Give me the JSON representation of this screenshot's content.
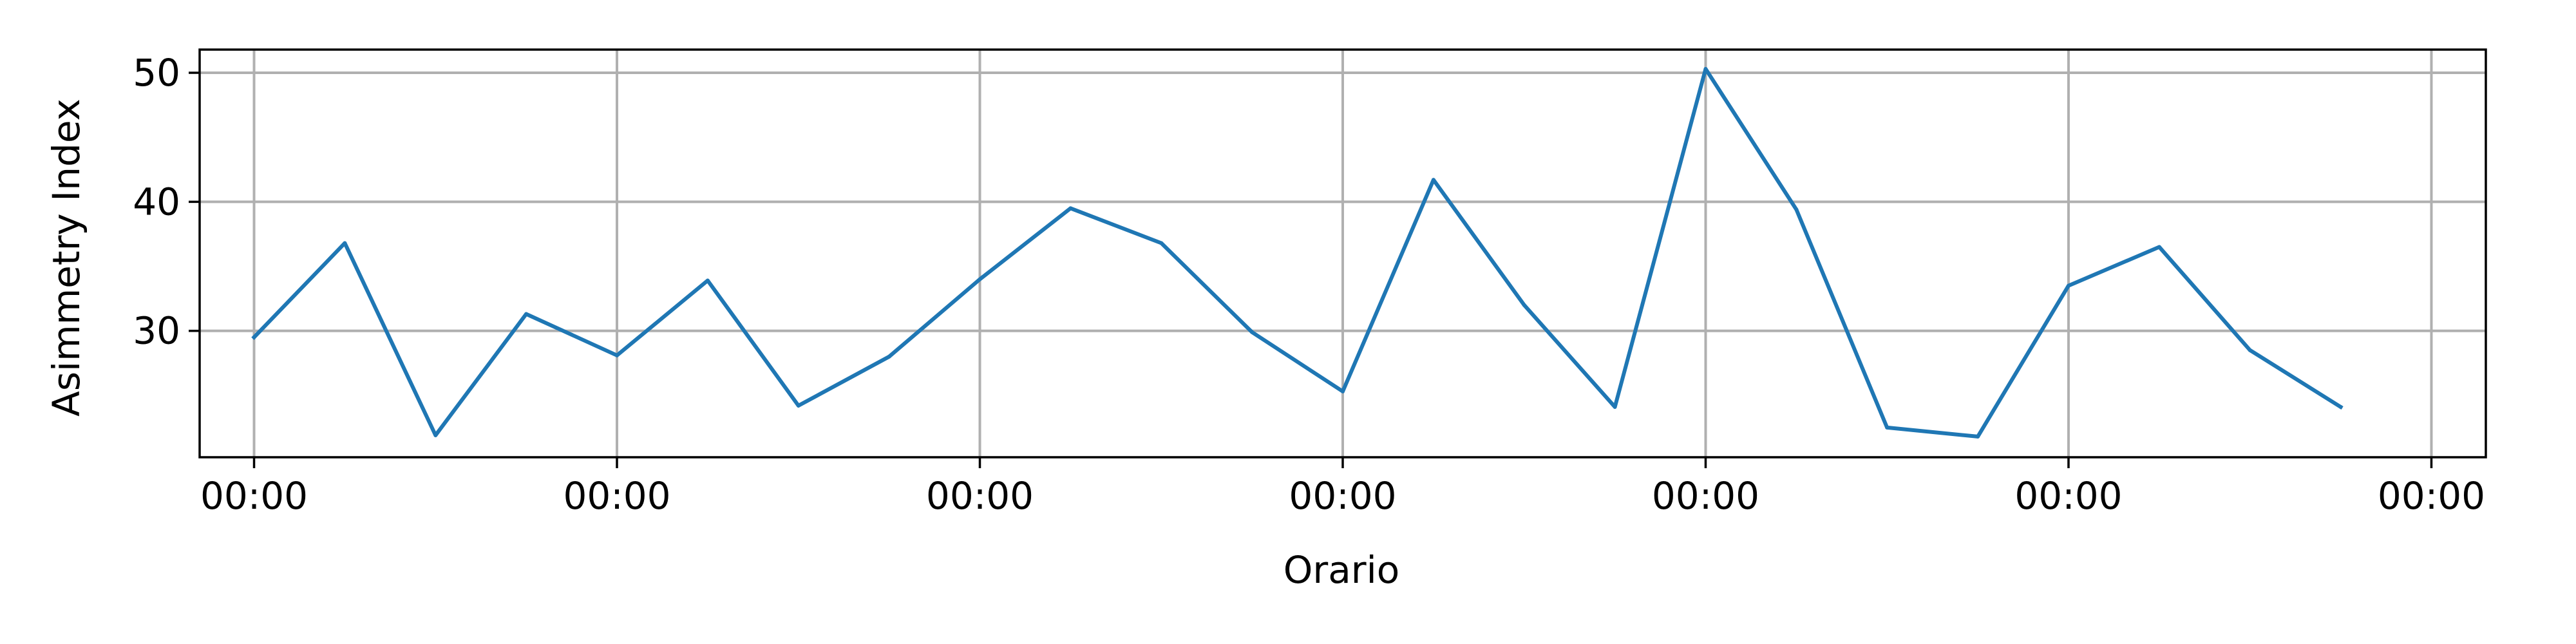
{
  "chart_data": {
    "type": "line",
    "title": "",
    "xlabel": "Orario",
    "ylabel": "Asimmetry Index",
    "grid": true,
    "legend": "none",
    "xlim": [
      -0.6,
      24.6
    ],
    "ylim": [
      20.2,
      51.8
    ],
    "x_ticks": [
      0,
      4,
      8,
      12,
      16,
      20,
      24
    ],
    "x_tick_labels": [
      "00:00",
      "00:00",
      "00:00",
      "00:00",
      "00:00",
      "00:00",
      "00:00"
    ],
    "y_ticks": [
      30,
      40,
      50
    ],
    "y_tick_labels": [
      "30",
      "40",
      "50"
    ],
    "series": [
      {
        "color": "#1f77b4",
        "x": [
          0,
          1,
          2,
          3,
          4,
          5,
          6,
          7,
          8,
          9,
          10,
          11,
          12,
          13,
          14,
          15,
          16,
          17,
          18,
          19,
          20,
          21,
          22,
          23
        ],
        "values": [
          29.5,
          36.8,
          21.9,
          31.3,
          28.1,
          33.9,
          24.2,
          28.0,
          34.0,
          39.5,
          36.8,
          29.9,
          25.3,
          41.7,
          32.0,
          24.1,
          50.3,
          39.4,
          22.5,
          21.8,
          33.5,
          36.5,
          28.5,
          24.1
        ]
      }
    ]
  }
}
